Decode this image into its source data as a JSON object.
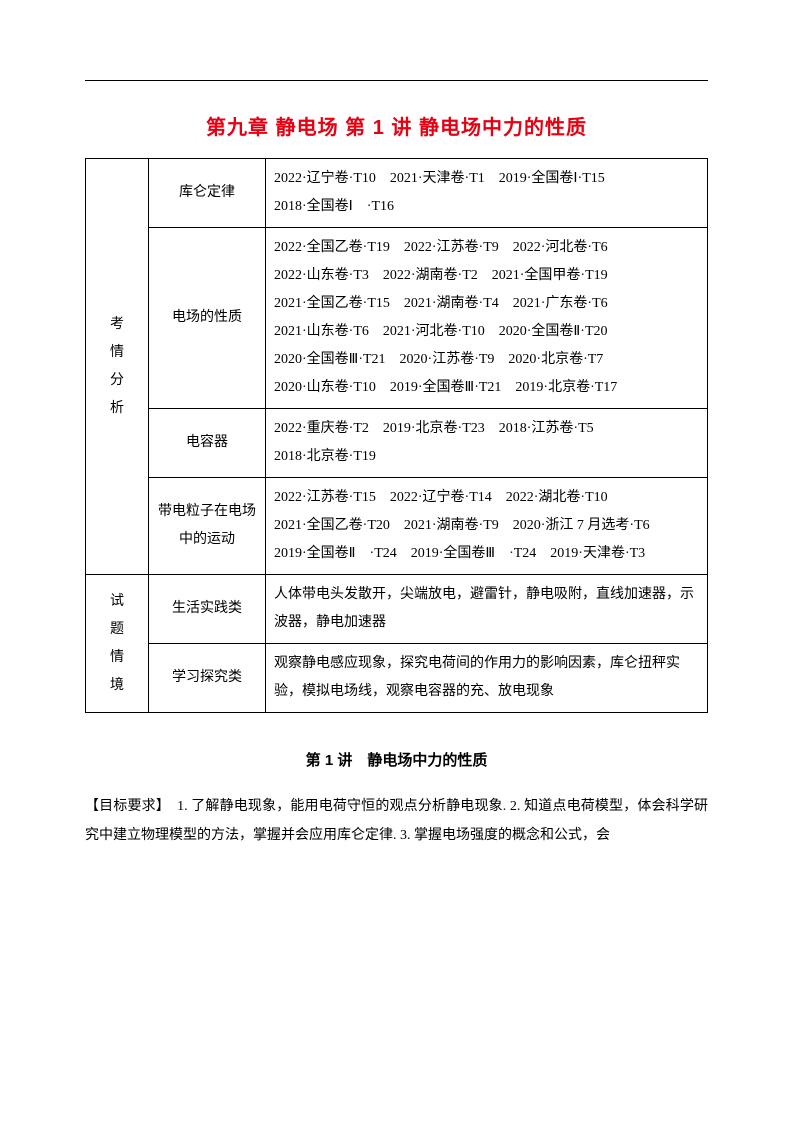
{
  "title": "第九章 静电场 第 1 讲 静电场中力的性质",
  "groups": [
    {
      "label": "考情分析",
      "rows": [
        {
          "topic": "库仑定律",
          "content": "2022·辽宁卷·T10　2021·天津卷·T1　2019·全国卷Ⅰ·T15\n2018·全国卷Ⅰ　·T16"
        },
        {
          "topic": "电场的性质",
          "content": "2022·全国乙卷·T19　2022·江苏卷·T9　2022·河北卷·T6\n2022·山东卷·T3　2022·湖南卷·T2　2021·全国甲卷·T19\n2021·全国乙卷·T15　2021·湖南卷·T4　2021·广东卷·T6\n2021·山东卷·T6　2021·河北卷·T10　2020·全国卷Ⅱ·T20\n2020·全国卷Ⅲ·T21　2020·江苏卷·T9　2020·北京卷·T7\n2020·山东卷·T10　2019·全国卷Ⅲ·T21　2019·北京卷·T17"
        },
        {
          "topic": "电容器",
          "content": "2022·重庆卷·T2　2019·北京卷·T23　2018·江苏卷·T5\n2018·北京卷·T19"
        },
        {
          "topic": "带电粒子在电场中的运动",
          "content": "2022·江苏卷·T15　2022·辽宁卷·T14　2022·湖北卷·T10\n2021·全国乙卷·T20　2021·湖南卷·T9　2020·浙江 7 月选考·T6\n2019·全国卷Ⅱ　·T24　2019·全国卷Ⅲ　·T24　2019·天津卷·T3"
        }
      ]
    },
    {
      "label": "试题情境",
      "rows": [
        {
          "topic": "生活实践类",
          "content": "人体带电头发散开，尖端放电，避雷针，静电吸附，直线加速器，示波器，静电加速器"
        },
        {
          "topic": "学习探究类",
          "content": "观察静电感应现象，探究电荷间的作用力的影响因素，库仑扭秤实验，模拟电场线，观察电容器的充、放电现象"
        }
      ]
    }
  ],
  "subtitle": "第 1 讲　静电场中力的性质",
  "bodyText": "【目标要求】　1. 了解静电现象，能用电荷守恒的观点分析静电现象. 2. 知道点电荷模型，体会科学研究中建立物理模型的方法，掌握并会应用库仑定律. 3. 掌握电场强度的概念和公式，会"
}
